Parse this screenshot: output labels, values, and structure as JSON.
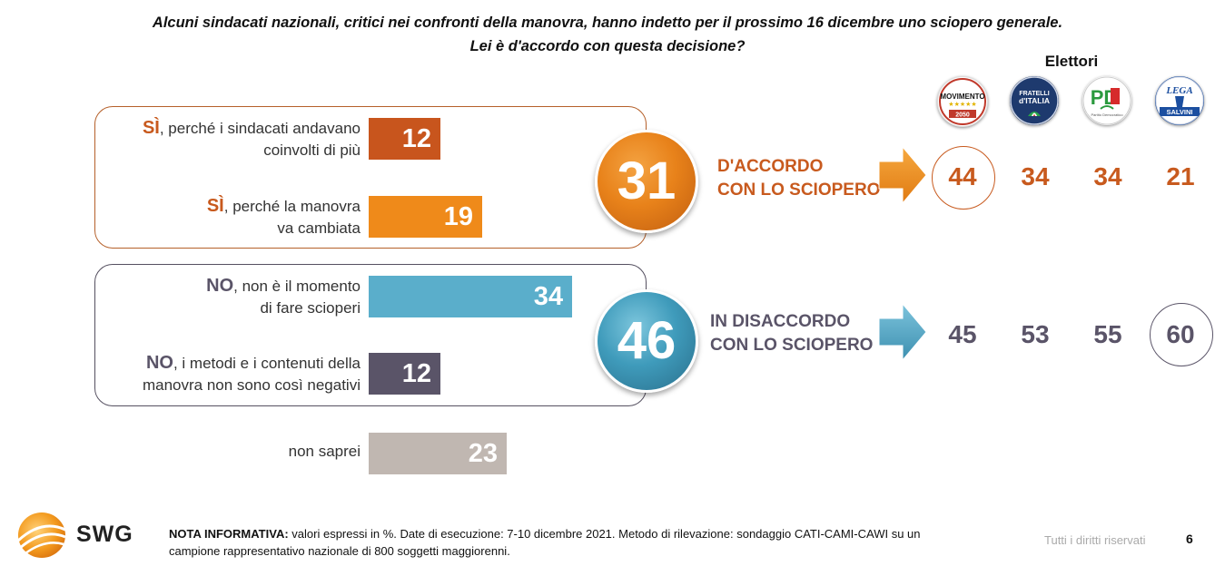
{
  "title_line1": "Alcuni sindacati nazionali, critici nei confronti della manovra, hanno indetto per il prossimo 16 dicembre uno sciopero generale.",
  "title_line2": "Lei è d'accordo con questa decisione?",
  "chart_data": {
    "type": "bar",
    "orientation": "horizontal",
    "unit": "%",
    "categories": [
      {
        "bold": "SÌ",
        "rest1": ", perché i sindacati andavano",
        "rest2": "coinvolti di più",
        "value": 12,
        "color": "#c8551d"
      },
      {
        "bold": "SÌ",
        "rest1": ", perché la manovra",
        "rest2": "va cambiata",
        "value": 19,
        "color": "#ef8a1a"
      },
      {
        "bold": "NO",
        "rest1": ", non è il momento",
        "rest2": "di fare scioperi",
        "value": 34,
        "color": "#5aaecb"
      },
      {
        "bold": "NO",
        "rest1": ", i metodi e i contenuti della",
        "rest2": "manovra non sono così negativi",
        "value": 12,
        "color": "#5a5468"
      },
      {
        "bold": "",
        "rest1": "non saprei",
        "rest2": "",
        "value": 23,
        "color": "#c0b7b1"
      }
    ],
    "aggregates": [
      {
        "value": 31,
        "label1": "D'ACCORDO",
        "label2": "CON LO SCIOPERO",
        "color": "#e8821a"
      },
      {
        "value": 46,
        "label1": "IN DISACCORDO",
        "label2": "CON LO SCIOPERO",
        "color": "#3f9bbb"
      }
    ],
    "electors_title": "Elettori",
    "parties": [
      {
        "logo": "movimento-5-stelle-logo",
        "logo_text": "MOVIMENTO",
        "logo_sub": "2050",
        "agree": 44,
        "disagree": 45
      },
      {
        "logo": "fratelli-d-italia-logo",
        "logo_text": "FRATELLI",
        "logo_sub": "d'ITALIA",
        "agree": 34,
        "disagree": 53
      },
      {
        "logo": "partito-democratico-logo",
        "logo_text": "PD",
        "logo_sub": "Partito Democratico",
        "agree": 34,
        "disagree": 55
      },
      {
        "logo": "lega-salvini-logo",
        "logo_text": "LEGA",
        "logo_sub": "SALVINI",
        "agree": 21,
        "disagree": 60
      }
    ],
    "highlight_agree_index": 0,
    "highlight_disagree_index": 3
  },
  "footer": {
    "note_bold": "NOTA INFORMATIVA:",
    "note_text": " valori espressi in %. Date di esecuzione: 7-10 dicembre 2021. Metodo di rilevazione: sondaggio CATI-CAMI-CAWI su un campione rappresentativo nazionale di 800 soggetti maggiorenni.",
    "rights": "Tutti i diritti riservati",
    "page": "6",
    "brand": "SWG"
  }
}
